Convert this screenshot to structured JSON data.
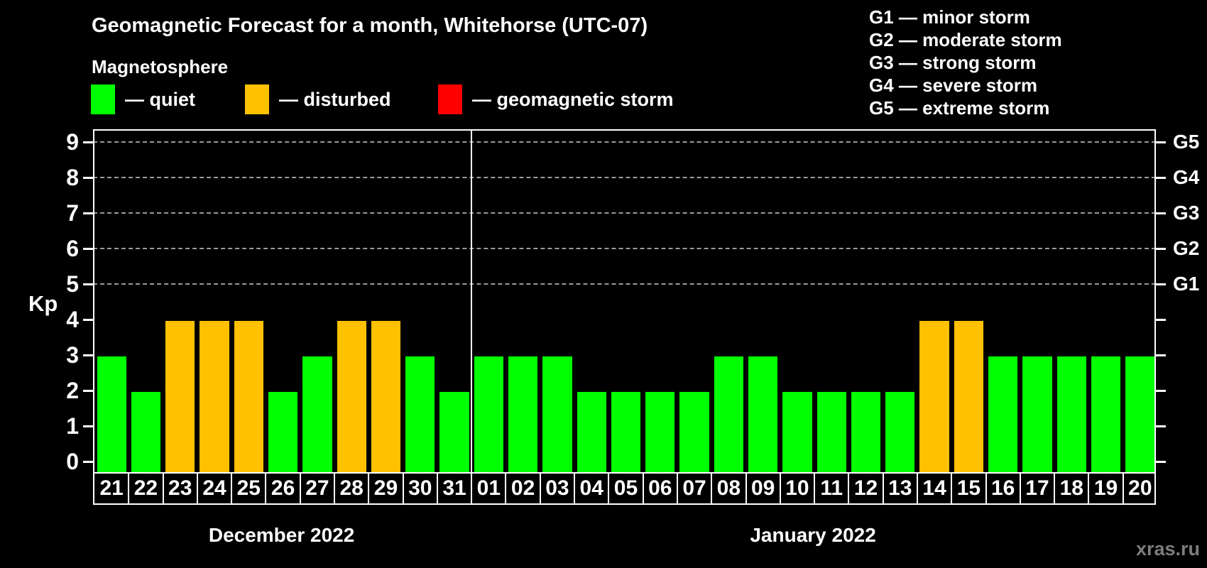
{
  "title": "Geomagnetic Forecast for a month, Whitehorse (UTC-07)",
  "subtitle": "Magnetosphere",
  "legend": {
    "items": [
      {
        "name": "quiet",
        "label": "— quiet",
        "color": "#00ff00"
      },
      {
        "name": "disturbed",
        "label": "— disturbed",
        "color": "#ffc100"
      },
      {
        "name": "storm",
        "label": "— geomagnetic storm",
        "color": "#ff0000"
      }
    ]
  },
  "g_legend": {
    "items": [
      "G1 — minor storm",
      "G2 — moderate storm",
      "G3 — strong storm",
      "G4 — severe storm",
      "G5 — extreme storm"
    ]
  },
  "watermark": "xras.ru",
  "chart_data": {
    "type": "bar",
    "title": "Geomagnetic Forecast for a month, Whitehorse (UTC-07)",
    "subtitle": "Magnetosphere",
    "ylabel": "Kp",
    "ylim": [
      0,
      9
    ],
    "yticks": [
      0,
      1,
      2,
      3,
      4,
      5,
      6,
      7,
      8,
      9
    ],
    "grid_levels": [
      5,
      6,
      7,
      8,
      9
    ],
    "right_axis_labels": [
      {
        "level": 5,
        "text": "G1"
      },
      {
        "level": 6,
        "text": "G2"
      },
      {
        "level": 7,
        "text": "G3"
      },
      {
        "level": 8,
        "text": "G4"
      },
      {
        "level": 9,
        "text": "G5"
      }
    ],
    "status_colors": {
      "quiet": "#00ff00",
      "disturbed": "#ffc100",
      "storm": "#ff0000"
    },
    "months": [
      {
        "label": "December 2022",
        "days": [
          {
            "day": "21",
            "kp": 3,
            "status": "quiet"
          },
          {
            "day": "22",
            "kp": 2,
            "status": "quiet"
          },
          {
            "day": "23",
            "kp": 4,
            "status": "disturbed"
          },
          {
            "day": "24",
            "kp": 4,
            "status": "disturbed"
          },
          {
            "day": "25",
            "kp": 4,
            "status": "disturbed"
          },
          {
            "day": "26",
            "kp": 2,
            "status": "quiet"
          },
          {
            "day": "27",
            "kp": 3,
            "status": "quiet"
          },
          {
            "day": "28",
            "kp": 4,
            "status": "disturbed"
          },
          {
            "day": "29",
            "kp": 4,
            "status": "disturbed"
          },
          {
            "day": "30",
            "kp": 3,
            "status": "quiet"
          },
          {
            "day": "31",
            "kp": 2,
            "status": "quiet"
          }
        ]
      },
      {
        "label": "January 2022",
        "days": [
          {
            "day": "01",
            "kp": 3,
            "status": "quiet"
          },
          {
            "day": "02",
            "kp": 3,
            "status": "quiet"
          },
          {
            "day": "03",
            "kp": 3,
            "status": "quiet"
          },
          {
            "day": "04",
            "kp": 2,
            "status": "quiet"
          },
          {
            "day": "05",
            "kp": 2,
            "status": "quiet"
          },
          {
            "day": "06",
            "kp": 2,
            "status": "quiet"
          },
          {
            "day": "07",
            "kp": 2,
            "status": "quiet"
          },
          {
            "day": "08",
            "kp": 3,
            "status": "quiet"
          },
          {
            "day": "09",
            "kp": 3,
            "status": "quiet"
          },
          {
            "day": "10",
            "kp": 2,
            "status": "quiet"
          },
          {
            "day": "11",
            "kp": 2,
            "status": "quiet"
          },
          {
            "day": "12",
            "kp": 2,
            "status": "quiet"
          },
          {
            "day": "13",
            "kp": 2,
            "status": "quiet"
          },
          {
            "day": "14",
            "kp": 4,
            "status": "disturbed"
          },
          {
            "day": "15",
            "kp": 4,
            "status": "disturbed"
          },
          {
            "day": "16",
            "kp": 3,
            "status": "quiet"
          },
          {
            "day": "17",
            "kp": 3,
            "status": "quiet"
          },
          {
            "day": "18",
            "kp": 3,
            "status": "quiet"
          },
          {
            "day": "19",
            "kp": 3,
            "status": "quiet"
          },
          {
            "day": "20",
            "kp": 3,
            "status": "quiet"
          }
        ]
      }
    ]
  }
}
